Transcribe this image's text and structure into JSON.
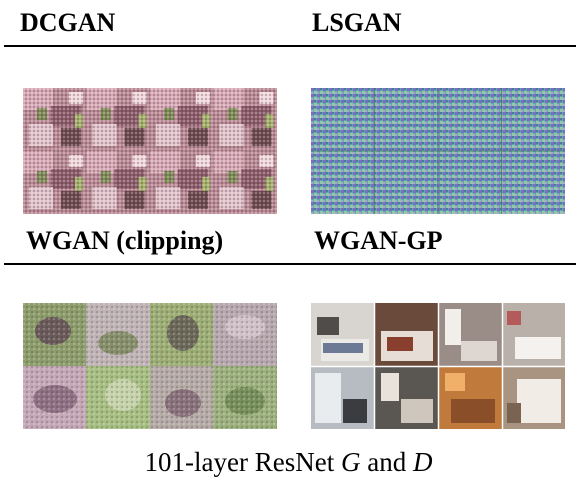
{
  "figure": {
    "headings": {
      "dcgan": "DCGAN",
      "lsgan": "LSGAN",
      "wgan_clipping": "WGAN (clipping)",
      "wgan_gp": "WGAN-GP"
    },
    "caption": {
      "prefix": "101-layer ResNet ",
      "g": "G",
      "mid": " and ",
      "d": "D"
    }
  }
}
